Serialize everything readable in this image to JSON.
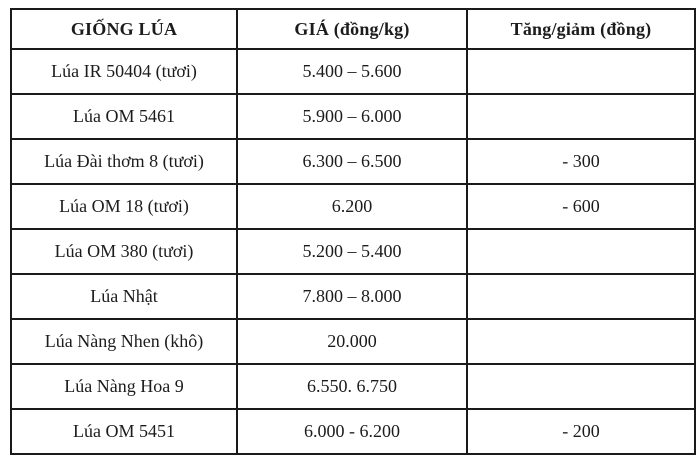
{
  "table": {
    "headers": [
      {
        "label": "GIỐNG LÚA"
      },
      {
        "label": "GIÁ (đồng/kg)"
      },
      {
        "label": "Tăng/giảm (đồng)"
      }
    ],
    "rows": [
      {
        "variety": "Lúa IR 50404 (tươi)",
        "price": "5.400 – 5.600",
        "change": ""
      },
      {
        "variety": "Lúa OM 5461",
        "price": "5.900 – 6.000",
        "change": ""
      },
      {
        "variety": "Lúa Đài thơm 8 (tươi)",
        "price": "6.300 – 6.500",
        "change": "- 300"
      },
      {
        "variety": "Lúa OM 18 (tươi)",
        "price": "6.200",
        "change": "- 600"
      },
      {
        "variety": "Lúa OM 380 (tươi)",
        "price": "5.200 – 5.400",
        "change": ""
      },
      {
        "variety": "Lúa Nhật",
        "price": "7.800 – 8.000",
        "change": ""
      },
      {
        "variety": "Lúa Nàng Nhen (khô)",
        "price": "20.000",
        "change": ""
      },
      {
        "variety": "Lúa Nàng Hoa 9",
        "price": "6.550. 6.750",
        "change": ""
      },
      {
        "variety": "Lúa OM 5451",
        "price": "6.000 - 6.200",
        "change": "- 200"
      }
    ],
    "colors": {
      "border": "#1a1a1a",
      "text": "#1c1c1c",
      "background": "#ffffff"
    }
  }
}
